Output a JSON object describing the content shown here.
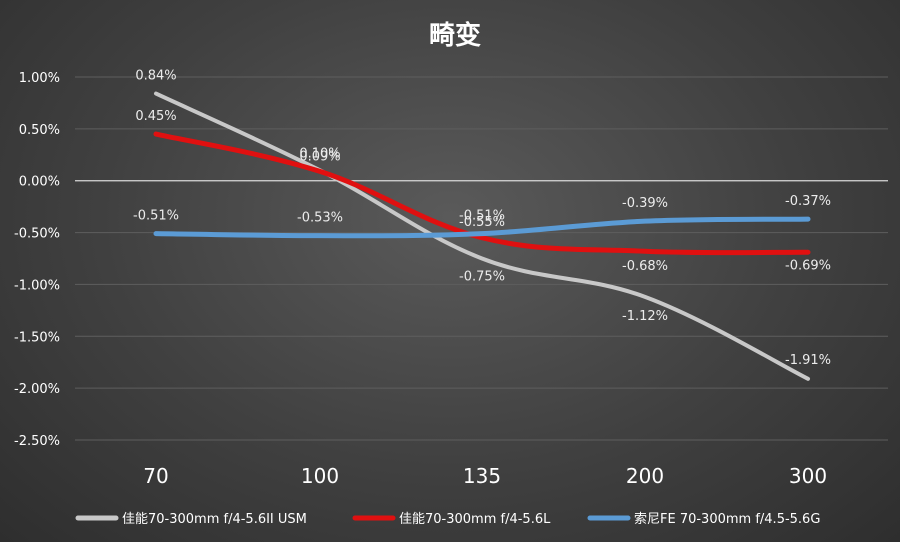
{
  "chart_data": {
    "type": "line",
    "title": "畸变",
    "categories": [
      "70",
      "100",
      "135",
      "200",
      "300"
    ],
    "ylim": [
      -2.5,
      1.0
    ],
    "yticks": [
      "1.00%",
      "0.50%",
      "0.00%",
      "-0.50%",
      "-1.00%",
      "-1.50%",
      "-2.00%",
      "-2.50%"
    ],
    "ytick_values": [
      1.0,
      0.5,
      0.0,
      -0.5,
      -1.0,
      -1.5,
      -2.0,
      -2.5
    ],
    "grid": true,
    "legend_position": "bottom",
    "series": [
      {
        "name": "佳能70-300mm f/4-5.6II USM",
        "color": "#c8c8c8",
        "values": [
          0.84,
          0.1,
          -0.75,
          -1.12,
          -1.91
        ],
        "labels": [
          "0.84%",
          "0.10%",
          "-0.75%",
          "-1.12%",
          "-1.91%"
        ]
      },
      {
        "name": "佳能70-300mm f/4-5.6L",
        "color": "#e01010",
        "values": [
          0.45,
          0.09,
          -0.55,
          -0.68,
          -0.69
        ],
        "labels": [
          "0.45%",
          "0.09%",
          "-0.55%",
          "-0.68%",
          "-0.69%"
        ]
      },
      {
        "name": "索尼FE 70-300mm f/4.5-5.6G",
        "color": "#5b9bd5",
        "values": [
          -0.51,
          -0.53,
          -0.51,
          -0.39,
          -0.37
        ],
        "labels": [
          "-0.51%",
          "-0.53%",
          "-0.51%",
          "-0.39%",
          "-0.37%"
        ]
      }
    ]
  }
}
